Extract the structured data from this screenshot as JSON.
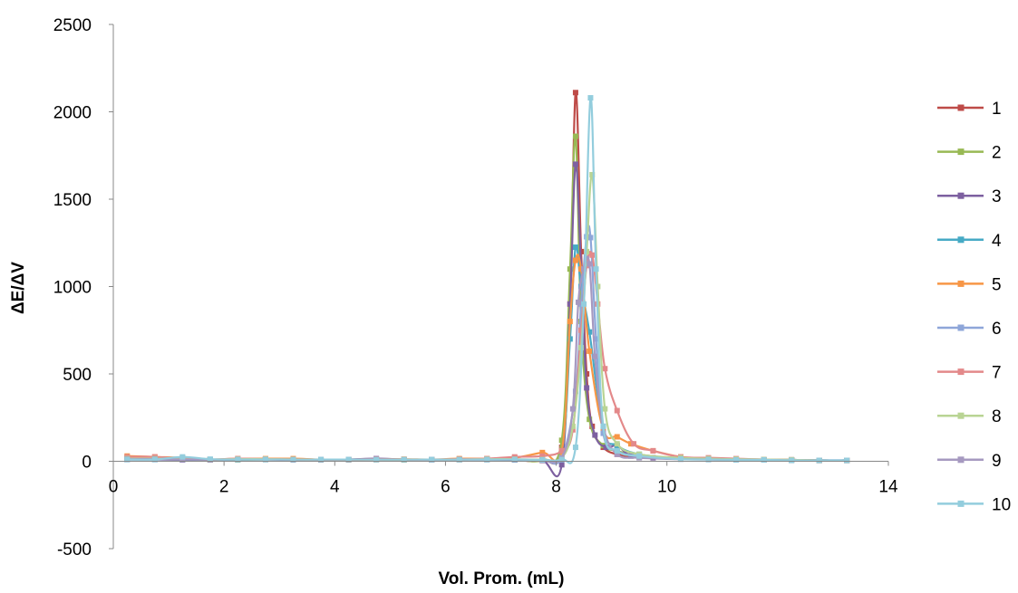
{
  "chart_data": {
    "type": "line",
    "title": "",
    "xlabel": "Vol. Prom. (mL)",
    "ylabel": "ΔE/ΔV",
    "xlim": [
      0,
      14
    ],
    "ylim": [
      -500,
      2500
    ],
    "xticks": [
      0,
      2,
      4,
      6,
      8,
      10,
      14
    ],
    "xtick_labels": [
      "0",
      "2",
      "4",
      "6",
      "8",
      "10",
      "14"
    ],
    "yticks": [
      -500,
      0,
      500,
      1000,
      1500,
      2000,
      2500
    ],
    "ytick_labels": [
      "-500",
      "0",
      "500",
      "1000",
      "1500",
      "2000",
      "2500"
    ],
    "grid": false,
    "legend": "right",
    "series": [
      {
        "name": "1",
        "color": "#be4b48",
        "x": [
          0.25,
          0.75,
          1.25,
          1.75,
          2.25,
          2.75,
          3.25,
          3.75,
          4.25,
          4.75,
          5.25,
          5.75,
          6.25,
          6.75,
          7.25,
          7.75,
          8.1,
          8.25,
          8.35,
          8.45,
          8.55,
          8.65,
          8.85,
          9.1,
          9.5,
          10.25,
          10.75,
          11.25,
          11.75,
          12.25,
          12.75,
          13.25
        ],
        "y": [
          20,
          15,
          10,
          8,
          10,
          12,
          10,
          10,
          8,
          10,
          10,
          8,
          10,
          12,
          8,
          5,
          80,
          900,
          2110,
          1200,
          500,
          200,
          80,
          40,
          25,
          15,
          12,
          10,
          8,
          8,
          5,
          5
        ]
      },
      {
        "name": "2",
        "color": "#98b954",
        "x": [
          0.25,
          0.75,
          1.25,
          1.75,
          2.25,
          2.75,
          3.25,
          3.75,
          4.25,
          4.75,
          5.25,
          5.75,
          6.25,
          6.75,
          7.25,
          7.75,
          8.1,
          8.25,
          8.35,
          8.45,
          8.6,
          8.85,
          9.1,
          9.5,
          10.25,
          10.75,
          11.25,
          11.75,
          12.25,
          12.75,
          13.25
        ],
        "y": [
          15,
          12,
          10,
          10,
          8,
          10,
          10,
          8,
          10,
          10,
          8,
          8,
          10,
          10,
          10,
          8,
          120,
          1100,
          1860,
          800,
          240,
          90,
          60,
          30,
          15,
          12,
          10,
          8,
          8,
          5,
          5
        ]
      },
      {
        "name": "3",
        "color": "#7d60a0",
        "x": [
          0.25,
          0.75,
          1.25,
          1.75,
          2.25,
          2.75,
          3.25,
          3.75,
          4.25,
          4.75,
          5.25,
          5.75,
          6.25,
          6.75,
          7.25,
          7.75,
          8.1,
          8.25,
          8.35,
          8.45,
          8.55,
          8.7,
          8.9,
          9.1,
          9.35,
          9.75,
          10.25,
          10.75,
          11.25,
          11.75,
          12.25,
          12.75,
          13.25
        ],
        "y": [
          10,
          10,
          8,
          8,
          10,
          10,
          8,
          8,
          10,
          15,
          10,
          8,
          10,
          10,
          8,
          5,
          -20,
          900,
          1700,
          1100,
          420,
          150,
          80,
          90,
          30,
          20,
          15,
          12,
          10,
          8,
          8,
          5,
          5
        ]
      },
      {
        "name": "4",
        "color": "#46aac5",
        "x": [
          0.25,
          0.75,
          1.25,
          1.75,
          2.25,
          2.75,
          3.25,
          3.75,
          4.25,
          4.75,
          5.25,
          5.75,
          6.25,
          6.75,
          7.25,
          7.75,
          8.1,
          8.25,
          8.35,
          8.45,
          8.6,
          8.85,
          9.1,
          9.5,
          10.25,
          10.75,
          11.25,
          11.75,
          12.25,
          12.75,
          13.25
        ],
        "y": [
          12,
          12,
          10,
          10,
          10,
          12,
          10,
          10,
          10,
          10,
          10,
          10,
          10,
          10,
          10,
          8,
          60,
          700,
          1225,
          1000,
          740,
          180,
          90,
          40,
          15,
          12,
          10,
          8,
          8,
          5,
          5
        ]
      },
      {
        "name": "5",
        "color": "#f79646",
        "x": [
          0.25,
          0.75,
          1.25,
          1.75,
          2.25,
          2.75,
          3.25,
          3.75,
          4.25,
          4.75,
          5.25,
          5.75,
          6.25,
          6.75,
          7.25,
          7.75,
          8.1,
          8.25,
          8.35,
          8.45,
          8.6,
          8.85,
          9.1,
          9.35,
          9.75,
          10.25,
          10.75,
          11.25,
          11.75,
          12.25,
          12.75,
          13.25
        ],
        "y": [
          30,
          25,
          20,
          10,
          15,
          15,
          15,
          10,
          10,
          10,
          12,
          10,
          15,
          15,
          20,
          50,
          60,
          800,
          1150,
          1100,
          630,
          180,
          140,
          100,
          60,
          25,
          15,
          12,
          10,
          8,
          5,
          5
        ]
      },
      {
        "name": "6",
        "color": "#8ea6d9",
        "x": [
          0.25,
          0.75,
          1.25,
          1.75,
          2.25,
          2.75,
          3.25,
          3.75,
          4.25,
          4.75,
          5.25,
          5.75,
          6.25,
          6.75,
          7.25,
          7.75,
          8.1,
          8.35,
          8.45,
          8.55,
          8.62,
          8.72,
          8.85,
          9.1,
          9.5,
          10.25,
          10.75,
          11.25,
          11.75,
          12.25,
          12.75,
          13.25
        ],
        "y": [
          10,
          10,
          10,
          10,
          10,
          12,
          10,
          10,
          10,
          10,
          10,
          8,
          10,
          10,
          10,
          8,
          20,
          400,
          900,
          1285,
          1280,
          700,
          160,
          60,
          30,
          15,
          10,
          8,
          8,
          5,
          5,
          5
        ]
      },
      {
        "name": "7",
        "color": "#e3898a",
        "x": [
          0.25,
          0.75,
          1.25,
          1.75,
          2.25,
          2.75,
          3.25,
          3.75,
          4.25,
          4.75,
          5.25,
          5.75,
          6.25,
          6.75,
          7.25,
          7.75,
          8.1,
          8.3,
          8.45,
          8.55,
          8.65,
          8.75,
          8.88,
          9.1,
          9.4,
          9.75,
          10.25,
          10.75,
          11.25,
          11.75,
          12.25,
          12.75,
          13.25
        ],
        "y": [
          25,
          25,
          15,
          10,
          15,
          12,
          10,
          10,
          10,
          12,
          10,
          10,
          12,
          15,
          25,
          30,
          60,
          180,
          750,
          1120,
          1180,
          900,
          530,
          290,
          100,
          60,
          25,
          20,
          15,
          10,
          8,
          5,
          5
        ]
      },
      {
        "name": "8",
        "color": "#b9d494",
        "x": [
          0.25,
          0.75,
          1.25,
          1.75,
          2.25,
          2.75,
          3.25,
          3.75,
          4.25,
          4.75,
          5.25,
          5.75,
          6.25,
          6.75,
          7.25,
          7.75,
          8.1,
          8.3,
          8.45,
          8.55,
          8.65,
          8.75,
          8.88,
          9.1,
          9.5,
          10.25,
          10.75,
          11.25,
          11.75,
          12.25,
          12.75,
          13.25
        ],
        "y": [
          15,
          15,
          12,
          10,
          12,
          12,
          10,
          10,
          10,
          10,
          10,
          10,
          10,
          12,
          12,
          10,
          20,
          200,
          650,
          1200,
          1640,
          1000,
          300,
          100,
          40,
          20,
          15,
          12,
          10,
          8,
          5,
          5
        ]
      },
      {
        "name": "9",
        "color": "#a699c0",
        "x": [
          0.25,
          0.75,
          1.25,
          1.75,
          2.25,
          2.75,
          3.25,
          3.75,
          4.25,
          4.75,
          5.25,
          5.75,
          6.25,
          6.75,
          7.25,
          7.75,
          8.1,
          8.3,
          8.4,
          8.5,
          8.6,
          8.7,
          8.85,
          9.1,
          9.5,
          10.25,
          10.75,
          11.25,
          11.75,
          12.25,
          12.75,
          13.25
        ],
        "y": [
          12,
          12,
          10,
          10,
          10,
          10,
          10,
          10,
          10,
          10,
          10,
          10,
          10,
          10,
          10,
          8,
          20,
          300,
          910,
          1100,
          1130,
          600,
          200,
          40,
          20,
          12,
          10,
          8,
          8,
          5,
          5,
          5
        ]
      },
      {
        "name": "10",
        "color": "#93cddd",
        "x": [
          0.25,
          0.75,
          1.25,
          1.75,
          2.25,
          2.75,
          3.25,
          3.75,
          4.25,
          4.75,
          5.25,
          5.75,
          6.25,
          6.75,
          7.25,
          7.75,
          8.1,
          8.35,
          8.5,
          8.62,
          8.72,
          8.85,
          9.1,
          9.5,
          10.25,
          10.75,
          11.25,
          11.75,
          12.25,
          12.75,
          13.25
        ],
        "y": [
          10,
          10,
          25,
          12,
          10,
          10,
          10,
          10,
          10,
          10,
          10,
          10,
          10,
          10,
          10,
          8,
          10,
          80,
          900,
          2080,
          1100,
          200,
          60,
          30,
          12,
          10,
          8,
          8,
          5,
          5,
          5
        ]
      }
    ]
  }
}
